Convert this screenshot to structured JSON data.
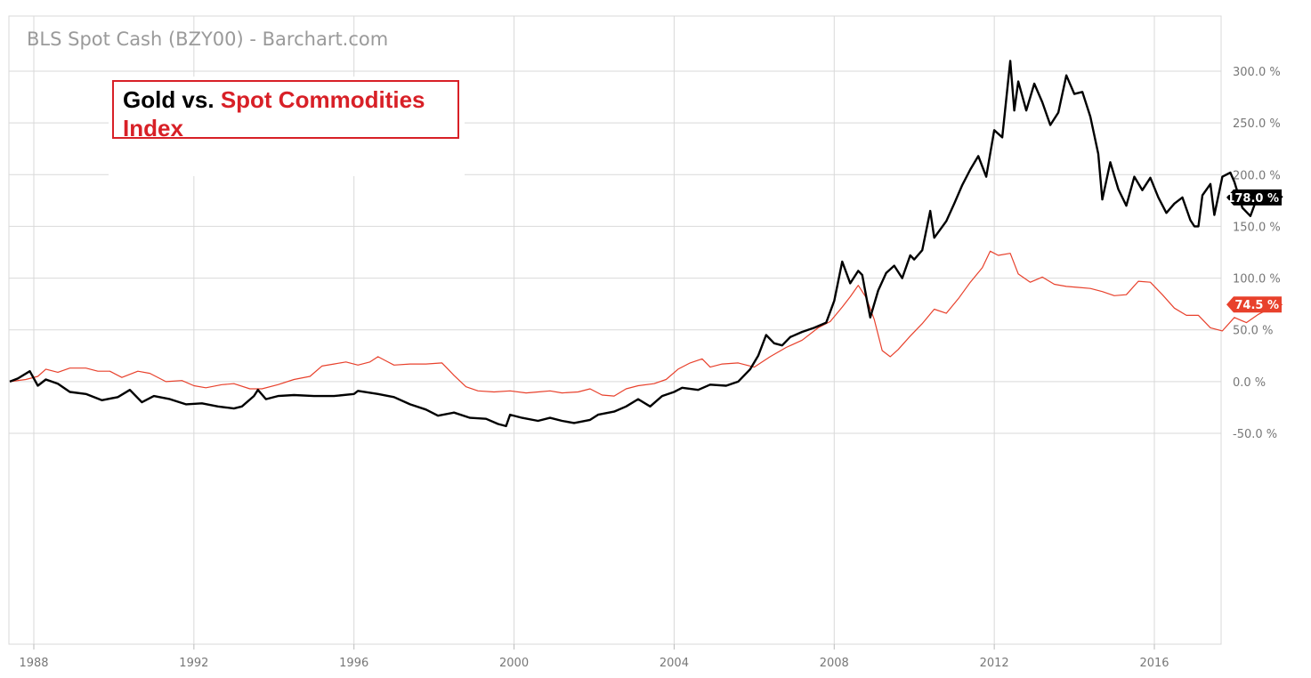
{
  "header": {
    "title": "BLS Spot Cash (BZY00) - Barchart.com"
  },
  "annotation": {
    "gold_text": "Gold vs.",
    "spot_text": "Spot Commodities",
    "index_text": "Index"
  },
  "colors": {
    "gold": "#000000",
    "spot": "#e8412c",
    "annotation_red": "#d82027",
    "grid": "#d9d9d9",
    "axis_text": "#777777"
  },
  "chart_data": {
    "type": "line",
    "title": "BLS Spot Cash (BZY00) - Barchart.com",
    "xlabel": "",
    "ylabel": "",
    "xlim": [
      1987.4,
      2017.6
    ],
    "ylim": [
      -50,
      300
    ],
    "x_ticks": [
      {
        "value": 1988,
        "label": "1988"
      },
      {
        "value": 1992,
        "label": "1992"
      },
      {
        "value": 1996,
        "label": "1996"
      },
      {
        "value": 2000,
        "label": "2000"
      },
      {
        "value": 2004,
        "label": "2004"
      },
      {
        "value": 2008,
        "label": "2008"
      },
      {
        "value": 2012,
        "label": "2012"
      },
      {
        "value": 2016,
        "label": "2016"
      }
    ],
    "y_ticks": [
      {
        "value": 300,
        "label": "300.0 %"
      },
      {
        "value": 250,
        "label": "250.0 %"
      },
      {
        "value": 200,
        "label": "200.0 %"
      },
      {
        "value": 150,
        "label": "150.0 %"
      },
      {
        "value": 100,
        "label": "100.0 %"
      },
      {
        "value": 50,
        "label": "50.0 %"
      },
      {
        "value": 0,
        "label": "0.0 %"
      },
      {
        "value": -50,
        "label": "-50.0 %"
      }
    ],
    "grid": true,
    "series": [
      {
        "name": "Gold",
        "color": "#000000",
        "last_label": "178.0 %",
        "points": [
          [
            1987.4,
            0
          ],
          [
            1987.6,
            3
          ],
          [
            1987.9,
            10
          ],
          [
            1988.1,
            -4
          ],
          [
            1988.3,
            2
          ],
          [
            1988.6,
            -2
          ],
          [
            1988.9,
            -10
          ],
          [
            1989.3,
            -12
          ],
          [
            1989.7,
            -18
          ],
          [
            1990.1,
            -15
          ],
          [
            1990.4,
            -8
          ],
          [
            1990.7,
            -20
          ],
          [
            1991.0,
            -14
          ],
          [
            1991.4,
            -17
          ],
          [
            1991.8,
            -22
          ],
          [
            1992.2,
            -21
          ],
          [
            1992.6,
            -24
          ],
          [
            1993.0,
            -26
          ],
          [
            1993.2,
            -24
          ],
          [
            1993.5,
            -14
          ],
          [
            1993.6,
            -8
          ],
          [
            1993.8,
            -17
          ],
          [
            1994.1,
            -14
          ],
          [
            1994.5,
            -13
          ],
          [
            1995.0,
            -14
          ],
          [
            1995.5,
            -14
          ],
          [
            1996.0,
            -12
          ],
          [
            1996.1,
            -9
          ],
          [
            1996.6,
            -12
          ],
          [
            1997.0,
            -15
          ],
          [
            1997.4,
            -22
          ],
          [
            1997.8,
            -27
          ],
          [
            1998.1,
            -33
          ],
          [
            1998.5,
            -30
          ],
          [
            1998.9,
            -35
          ],
          [
            1999.3,
            -36
          ],
          [
            1999.6,
            -41
          ],
          [
            1999.8,
            -43
          ],
          [
            1999.9,
            -32
          ],
          [
            2000.2,
            -35
          ],
          [
            2000.6,
            -38
          ],
          [
            2000.9,
            -35
          ],
          [
            2001.2,
            -38
          ],
          [
            2001.5,
            -40
          ],
          [
            2001.9,
            -37
          ],
          [
            2002.1,
            -32
          ],
          [
            2002.5,
            -29
          ],
          [
            2002.8,
            -24
          ],
          [
            2003.1,
            -17
          ],
          [
            2003.4,
            -24
          ],
          [
            2003.7,
            -14
          ],
          [
            2004.0,
            -10
          ],
          [
            2004.2,
            -6
          ],
          [
            2004.6,
            -8
          ],
          [
            2004.9,
            -3
          ],
          [
            2005.3,
            -4
          ],
          [
            2005.6,
            0
          ],
          [
            2005.9,
            12
          ],
          [
            2006.1,
            25
          ],
          [
            2006.3,
            45
          ],
          [
            2006.5,
            37
          ],
          [
            2006.7,
            35
          ],
          [
            2006.9,
            43
          ],
          [
            2007.2,
            48
          ],
          [
            2007.5,
            52
          ],
          [
            2007.8,
            57
          ],
          [
            2008.0,
            78
          ],
          [
            2008.2,
            116
          ],
          [
            2008.4,
            95
          ],
          [
            2008.6,
            107
          ],
          [
            2008.7,
            103
          ],
          [
            2008.8,
            82
          ],
          [
            2008.9,
            62
          ],
          [
            2009.1,
            88
          ],
          [
            2009.3,
            105
          ],
          [
            2009.5,
            112
          ],
          [
            2009.7,
            100
          ],
          [
            2009.9,
            122
          ],
          [
            2010.0,
            118
          ],
          [
            2010.2,
            127
          ],
          [
            2010.4,
            165
          ],
          [
            2010.5,
            139
          ],
          [
            2010.8,
            155
          ],
          [
            2011.0,
            172
          ],
          [
            2011.2,
            190
          ],
          [
            2011.4,
            205
          ],
          [
            2011.6,
            218
          ],
          [
            2011.8,
            198
          ],
          [
            2012.0,
            243
          ],
          [
            2012.2,
            236
          ],
          [
            2012.4,
            310
          ],
          [
            2012.5,
            262
          ],
          [
            2012.6,
            290
          ],
          [
            2012.8,
            262
          ],
          [
            2013.0,
            288
          ],
          [
            2013.2,
            270
          ],
          [
            2013.4,
            248
          ],
          [
            2013.6,
            260
          ],
          [
            2013.8,
            296
          ],
          [
            2014.0,
            278
          ],
          [
            2014.2,
            280
          ],
          [
            2014.4,
            256
          ],
          [
            2014.6,
            220
          ],
          [
            2014.7,
            176
          ],
          [
            2014.9,
            212
          ],
          [
            2015.1,
            186
          ],
          [
            2015.3,
            170
          ],
          [
            2015.5,
            198
          ],
          [
            2015.7,
            185
          ],
          [
            2015.9,
            197
          ],
          [
            2016.1,
            178
          ],
          [
            2016.3,
            163
          ],
          [
            2016.5,
            172
          ],
          [
            2016.7,
            178
          ],
          [
            2016.9,
            156
          ],
          [
            2017.0,
            150
          ],
          [
            2017.1,
            150
          ],
          [
            2017.2,
            180
          ],
          [
            2017.4,
            191
          ],
          [
            2017.5,
            161
          ],
          [
            2017.7,
            198
          ],
          [
            2017.9,
            202
          ],
          [
            2018.0,
            193
          ],
          [
            2018.2,
            168
          ],
          [
            2018.4,
            160
          ],
          [
            2018.6,
            181
          ],
          [
            2018.8,
            184
          ],
          [
            2019.0,
            184
          ],
          [
            2019.2,
            178
          ]
        ]
      },
      {
        "name": "Spot Commodities Index",
        "color": "#e8412c",
        "last_label": "74.5 %",
        "points": [
          [
            1987.4,
            0
          ],
          [
            1987.8,
            2
          ],
          [
            1988.1,
            5
          ],
          [
            1988.3,
            12
          ],
          [
            1988.6,
            9
          ],
          [
            1988.9,
            13
          ],
          [
            1989.3,
            13
          ],
          [
            1989.6,
            10
          ],
          [
            1989.9,
            10
          ],
          [
            1990.2,
            4
          ],
          [
            1990.6,
            10
          ],
          [
            1990.9,
            8
          ],
          [
            1991.3,
            0
          ],
          [
            1991.7,
            1
          ],
          [
            1992.0,
            -4
          ],
          [
            1992.3,
            -6
          ],
          [
            1992.7,
            -3
          ],
          [
            1993.0,
            -2
          ],
          [
            1993.4,
            -7
          ],
          [
            1993.7,
            -7
          ],
          [
            1994.1,
            -3
          ],
          [
            1994.5,
            2
          ],
          [
            1994.9,
            5
          ],
          [
            1995.2,
            15
          ],
          [
            1995.5,
            17
          ],
          [
            1995.8,
            19
          ],
          [
            1996.1,
            16
          ],
          [
            1996.4,
            19
          ],
          [
            1996.6,
            24
          ],
          [
            1996.8,
            20
          ],
          [
            1997.0,
            16
          ],
          [
            1997.4,
            17
          ],
          [
            1997.8,
            17
          ],
          [
            1998.2,
            18
          ],
          [
            1998.5,
            6
          ],
          [
            1998.8,
            -5
          ],
          [
            1999.1,
            -9
          ],
          [
            1999.5,
            -10
          ],
          [
            1999.9,
            -9
          ],
          [
            2000.3,
            -11
          ],
          [
            2000.6,
            -10
          ],
          [
            2000.9,
            -9
          ],
          [
            2001.2,
            -11
          ],
          [
            2001.6,
            -10
          ],
          [
            2001.9,
            -7
          ],
          [
            2002.2,
            -13
          ],
          [
            2002.5,
            -14
          ],
          [
            2002.8,
            -7
          ],
          [
            2003.1,
            -4
          ],
          [
            2003.5,
            -2
          ],
          [
            2003.8,
            2
          ],
          [
            2004.1,
            12
          ],
          [
            2004.4,
            18
          ],
          [
            2004.7,
            22
          ],
          [
            2004.9,
            14
          ],
          [
            2005.2,
            17
          ],
          [
            2005.6,
            18
          ],
          [
            2006.0,
            14
          ],
          [
            2006.4,
            24
          ],
          [
            2006.8,
            33
          ],
          [
            2007.2,
            40
          ],
          [
            2007.6,
            52
          ],
          [
            2007.9,
            58
          ],
          [
            2008.2,
            72
          ],
          [
            2008.4,
            82
          ],
          [
            2008.6,
            93
          ],
          [
            2008.8,
            81
          ],
          [
            2009.0,
            60
          ],
          [
            2009.2,
            30
          ],
          [
            2009.4,
            24
          ],
          [
            2009.6,
            31
          ],
          [
            2009.9,
            44
          ],
          [
            2010.2,
            56
          ],
          [
            2010.5,
            70
          ],
          [
            2010.8,
            66
          ],
          [
            2011.1,
            80
          ],
          [
            2011.4,
            96
          ],
          [
            2011.7,
            110
          ],
          [
            2011.9,
            126
          ],
          [
            2012.1,
            122
          ],
          [
            2012.4,
            124
          ],
          [
            2012.6,
            104
          ],
          [
            2012.9,
            96
          ],
          [
            2013.2,
            101
          ],
          [
            2013.5,
            94
          ],
          [
            2013.8,
            92
          ],
          [
            2014.1,
            91
          ],
          [
            2014.4,
            90
          ],
          [
            2014.7,
            87
          ],
          [
            2015.0,
            83
          ],
          [
            2015.3,
            84
          ],
          [
            2015.6,
            97
          ],
          [
            2015.9,
            96
          ],
          [
            2016.2,
            84
          ],
          [
            2016.5,
            71
          ],
          [
            2016.8,
            64
          ],
          [
            2017.1,
            64
          ],
          [
            2017.4,
            52
          ],
          [
            2017.7,
            49
          ],
          [
            2018.0,
            62
          ],
          [
            2018.3,
            57
          ],
          [
            2018.6,
            65
          ],
          [
            2018.9,
            71
          ],
          [
            2019.2,
            74.5
          ]
        ]
      }
    ]
  }
}
